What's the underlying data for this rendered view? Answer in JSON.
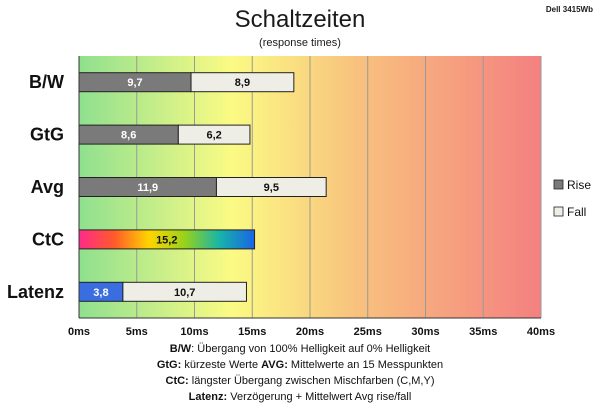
{
  "chart_data": {
    "type": "bar",
    "orientation": "horizontal",
    "stacked": true,
    "title": "Schaltzeiten",
    "subtitle": "(response times)",
    "corner_label": "Dell 3415Wb",
    "categories": [
      "B/W",
      "GtG",
      "Avg",
      "CtC",
      "Latenz"
    ],
    "series": [
      {
        "name": "Rise",
        "values": [
          9.7,
          8.6,
          11.9,
          null,
          null
        ]
      },
      {
        "name": "Fall",
        "values": [
          8.9,
          6.2,
          9.5,
          null,
          null
        ]
      }
    ],
    "single_bars": [
      {
        "category": "CtC",
        "value": 15.2,
        "label": "15,2",
        "style": "rainbow"
      },
      {
        "category": "Latenz",
        "segments": [
          {
            "value": 3.8,
            "label": "3,8",
            "color": "#3a6de0"
          },
          {
            "value": 10.7,
            "label": "10,7",
            "color": "#efeee6"
          }
        ]
      }
    ],
    "data_labels": {
      "Rise": [
        "9,7",
        "8,6",
        "11,9",
        "",
        ""
      ],
      "Fall": [
        "8,9",
        "6,2",
        "9,5",
        "",
        ""
      ]
    },
    "xlim": [
      0,
      40
    ],
    "xticks": [
      0,
      5,
      10,
      15,
      20,
      25,
      30,
      35,
      40
    ],
    "xtick_labels": [
      "0ms",
      "5ms",
      "10ms",
      "15ms",
      "20ms",
      "25ms",
      "30ms",
      "35ms",
      "40ms"
    ],
    "grid": true,
    "legend": {
      "placement": "right",
      "entries": [
        "Rise",
        "Fall"
      ]
    },
    "colors": {
      "rise": "#7a7a7a",
      "fall": "#efeee6",
      "edge": "#222222",
      "bg_green": "#8fe08f",
      "bg_yellow": "#fbfb84",
      "bg_red": "#f48080"
    }
  },
  "footnotes": [
    [
      {
        "t": "B/W",
        "b": true
      },
      {
        "t": ":  Übergang von 100% Helligkeit auf 0% Helligkeit",
        "b": false
      }
    ],
    [
      {
        "t": "GtG:",
        "b": true
      },
      {
        "t": " kürzeste  Werte         ",
        "b": false
      },
      {
        "t": "AVG:",
        "b": true
      },
      {
        "t": " Mittelwerte  an 15 Messpunkten",
        "b": false
      }
    ],
    [
      {
        "t": "CtC:",
        "b": true
      },
      {
        "t": " längster Übergang  zwischen Mischfarben  (C,M,Y)",
        "b": false
      }
    ],
    [
      {
        "t": "Latenz:",
        "b": true
      },
      {
        "t": " Verzögerung  + Mittelwert Avg rise/fall",
        "b": false
      }
    ]
  ]
}
